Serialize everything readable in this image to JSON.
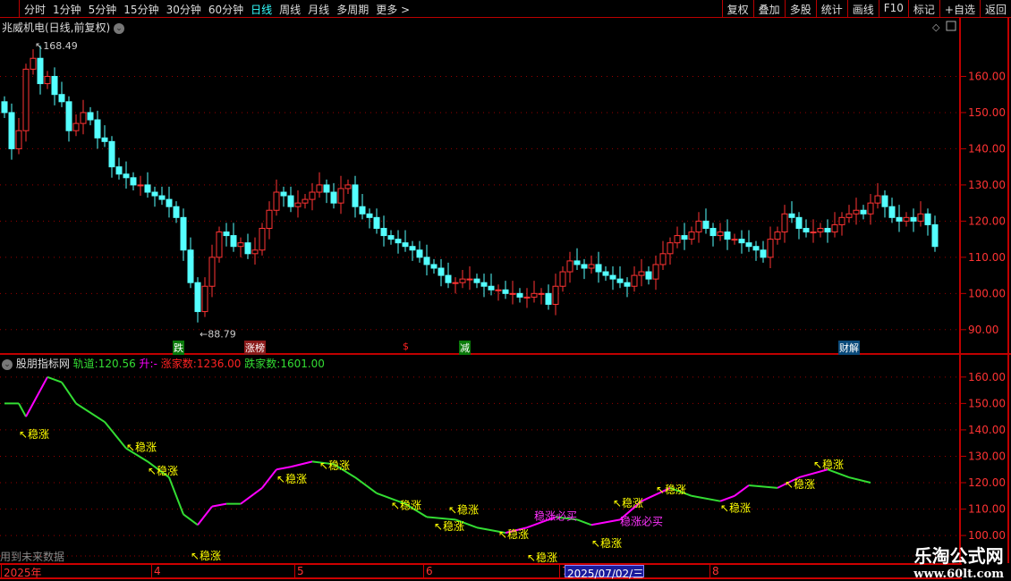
{
  "toolbar": {
    "periods": [
      "分时",
      "1分钟",
      "5分钟",
      "15分钟",
      "30分钟",
      "60分钟",
      "日线",
      "周线",
      "月线",
      "多周期",
      "更多 >"
    ],
    "active": "日线",
    "tools": [
      "复权",
      "叠加",
      "多股",
      "统计",
      "画线",
      "F10",
      "标记",
      "+自选",
      "返回"
    ]
  },
  "stock_title": "兆威机电(日线,前复权)",
  "colors": {
    "up": "#ff3333",
    "down": "#54ffff",
    "rise": "#ff00ff",
    "fall": "#33dd33",
    "signal": "#ffff00",
    "buy": "#ff33ff",
    "axis": "#c00000"
  },
  "main_chart": {
    "type": "candlestick",
    "ylim": [
      86,
      170
    ],
    "yticks": [
      90,
      100,
      110,
      120,
      130,
      140,
      150,
      160
    ],
    "yticklabels": [
      "90.00",
      "100.00",
      "110.00",
      "120.00",
      "130.00",
      "140.00",
      "150.00",
      "160.00"
    ],
    "high_label": "168.49",
    "low_label": "88.79",
    "close": [
      150,
      140,
      145,
      162,
      165,
      158,
      160,
      155,
      153,
      145,
      147,
      150,
      148,
      143,
      142,
      135,
      133,
      132,
      130,
      130,
      128,
      127,
      126,
      124,
      121,
      112,
      103,
      95,
      102,
      110,
      117,
      116,
      113,
      114,
      111,
      112,
      118,
      123,
      128,
      127,
      124,
      125,
      126,
      128,
      130,
      128,
      125,
      129,
      130,
      124,
      122,
      121,
      118,
      116,
      115,
      114,
      113,
      112,
      110,
      108,
      107,
      105,
      103,
      103,
      104,
      104,
      103,
      102,
      101,
      101,
      100,
      100,
      99,
      99,
      100,
      100,
      97,
      102,
      106,
      109,
      108,
      107,
      108,
      106,
      105,
      104,
      103,
      102,
      105,
      106,
      104,
      108,
      111,
      114,
      116,
      115,
      117,
      120,
      118,
      116,
      117,
      115,
      115,
      114,
      113,
      112,
      110,
      115,
      117,
      122,
      121,
      118,
      117,
      117,
      118,
      117,
      119,
      121,
      122,
      123,
      122,
      125,
      127,
      124,
      121,
      120,
      121,
      120,
      122,
      119,
      113
    ],
    "tags": [
      {
        "text": "跌",
        "bg": "#0a7a0a",
        "idx": 24
      },
      {
        "text": "涨榜",
        "bg": "#8a1a1a",
        "idx": 34
      },
      {
        "text": "$",
        "bg": "#000",
        "idx": 56
      },
      {
        "text": "减",
        "bg": "#0a7a0a",
        "idx": 64
      },
      {
        "text": "财解",
        "bg": "#0a4a7a",
        "idx": 117
      }
    ]
  },
  "indicator": {
    "name": "股朋指标网",
    "track_label": "轨道:",
    "track_value": "120.56",
    "rise_label": "升:",
    "rise_value": "-",
    "up_count_label": "涨家数:",
    "up_count": "1236.00",
    "down_count_label": "跌家数:",
    "down_count": "1601.00",
    "ylim": [
      98,
      164
    ],
    "yticks": [
      100,
      110,
      120,
      130,
      140,
      150,
      160
    ],
    "yticklabels": [
      "100.00",
      "110.00",
      "120.00",
      "130.00",
      "140.00",
      "150.00",
      "160.00"
    ],
    "points": [
      [
        0,
        150
      ],
      [
        2,
        150
      ],
      [
        3,
        145
      ],
      [
        5,
        155
      ],
      [
        6,
        160
      ],
      [
        8,
        158
      ],
      [
        10,
        150
      ],
      [
        14,
        143
      ],
      [
        17,
        133
      ],
      [
        20,
        128
      ],
      [
        23,
        122
      ],
      [
        25,
        108
      ],
      [
        27,
        104
      ],
      [
        29,
        111
      ],
      [
        31,
        112
      ],
      [
        33,
        112
      ],
      [
        36,
        118
      ],
      [
        38,
        125
      ],
      [
        40,
        126
      ],
      [
        43,
        128
      ],
      [
        46,
        127
      ],
      [
        49,
        122
      ],
      [
        52,
        116
      ],
      [
        56,
        112
      ],
      [
        59,
        107
      ],
      [
        63,
        106
      ],
      [
        66,
        103
      ],
      [
        70,
        101
      ],
      [
        73,
        103
      ],
      [
        77,
        107
      ],
      [
        80,
        106
      ],
      [
        82,
        104
      ],
      [
        86,
        106
      ],
      [
        89,
        113
      ],
      [
        93,
        118
      ],
      [
        96,
        115
      ],
      [
        100,
        113
      ],
      [
        102,
        115
      ],
      [
        104,
        119
      ],
      [
        108,
        118
      ],
      [
        111,
        122
      ],
      [
        115,
        125
      ],
      [
        118,
        122
      ],
      [
        121,
        120
      ]
    ],
    "signals": [
      {
        "text": "稳涨",
        "idx": 2,
        "v": 137
      },
      {
        "text": "稳涨",
        "idx": 17,
        "v": 132
      },
      {
        "text": "稳涨",
        "idx": 20,
        "v": 123
      },
      {
        "text": "稳涨",
        "idx": 26,
        "v": 86
      },
      {
        "text": "稳涨",
        "idx": 38,
        "v": 120
      },
      {
        "text": "稳涨",
        "idx": 44,
        "v": 125
      },
      {
        "text": "稳涨",
        "idx": 54,
        "v": 110
      },
      {
        "text": "稳涨",
        "idx": 60,
        "v": 102
      },
      {
        "text": "稳涨",
        "idx": 62,
        "v": 104
      },
      {
        "text": "稳涨",
        "idx": 69,
        "v": 99
      },
      {
        "text": "稳涨",
        "idx": 73,
        "v": 99
      },
      {
        "text": "稳涨",
        "idx": 82,
        "v": 100
      },
      {
        "text": "稳涨",
        "idx": 85,
        "v": 102
      },
      {
        "text": "稳涨",
        "idx": 91,
        "v": 116
      },
      {
        "text": "稳涨",
        "idx": 100,
        "v": 109
      },
      {
        "text": "稳涨",
        "idx": 109,
        "v": 118
      },
      {
        "text": "稳涨",
        "idx": 113,
        "v": 121
      }
    ],
    "buy_signals": [
      {
        "text": "稳涨必买",
        "idx": 74,
        "v": 106
      },
      {
        "text": "稳涨必买",
        "idx": 86,
        "v": 104
      }
    ]
  },
  "footer_note": "用到未来数据",
  "xaxis": {
    "labels": [
      {
        "text": "2025年",
        "idx": 0
      },
      {
        "text": "4",
        "idx": 21
      },
      {
        "text": "5",
        "idx": 41
      },
      {
        "text": "6",
        "idx": 59
      },
      {
        "text": "7",
        "idx": 78
      }
    ],
    "later": [
      {
        "text": "8",
        "idx": 99
      }
    ],
    "cursor_date": "2025/07/02/三"
  },
  "watermark": {
    "name": "乐淘公式网",
    "url": "www.60lt.com"
  }
}
